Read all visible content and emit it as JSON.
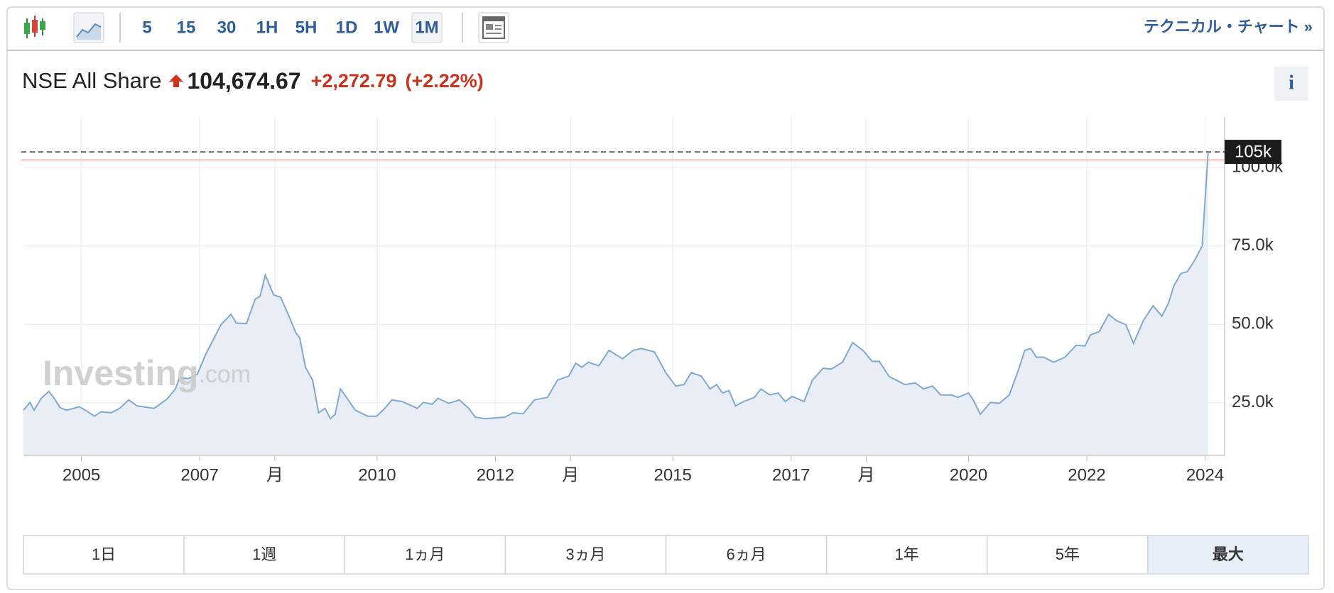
{
  "toolbar": {
    "intervals": [
      "5",
      "15",
      "30",
      "1H",
      "5H",
      "1D",
      "1W",
      "1M"
    ],
    "selected": 7,
    "technical_link": "テクニカル・チャート »"
  },
  "info": "i",
  "chart_data": {
    "type": "area",
    "title": "NSE All Share",
    "price": "104,674.67",
    "change": "+2,272.79",
    "change_pct": "(+2.22%)",
    "watermark": [
      "Investing",
      ".com"
    ],
    "color": "#7ea9d1",
    "fill": "#e9eef6",
    "x": [
      2004.02,
      2004.13,
      2004.2,
      2004.32,
      2004.45,
      2004.54,
      2004.64,
      2004.75,
      2004.96,
      2005.07,
      2005.22,
      2005.33,
      2005.5,
      2005.65,
      2005.8,
      2005.94,
      2006.23,
      2006.45,
      2006.59,
      2006.66,
      2006.81,
      2006.96,
      2007.1,
      2007.21,
      2007.36,
      2007.53,
      2007.62,
      2007.79,
      2007.94,
      2008.02,
      2008.11,
      2008.25,
      2008.37,
      2008.51,
      2008.63,
      2008.69,
      2008.79,
      2008.91,
      2009.01,
      2009.12,
      2009.21,
      2009.29,
      2009.38,
      2009.5,
      2009.63,
      2009.84,
      2009.99,
      2010.13,
      2010.25,
      2010.42,
      2010.68,
      2010.78,
      2010.93,
      2011.03,
      2011.21,
      2011.39,
      2011.55,
      2011.66,
      2011.83,
      2012.01,
      2012.16,
      2012.3,
      2012.47,
      2012.66,
      2012.88,
      2013.05,
      2013.24,
      2013.36,
      2013.46,
      2013.57,
      2013.75,
      2013.92,
      2014.15,
      2014.33,
      2014.47,
      2014.69,
      2014.88,
      2015.05,
      2015.19,
      2015.31,
      2015.48,
      2015.63,
      2015.74,
      2015.84,
      2015.95,
      2016.06,
      2016.2,
      2016.38,
      2016.49,
      2016.64,
      2016.78,
      2016.9,
      2017.02,
      2017.22,
      2017.36,
      2017.54,
      2017.68,
      2017.87,
      2018.04,
      2018.23,
      2018.37,
      2018.49,
      2018.66,
      2018.81,
      2018.92,
      2019.1,
      2019.24,
      2019.39,
      2019.53,
      2019.71,
      2019.82,
      2020.0,
      2020.08,
      2020.2,
      2020.37,
      2020.52,
      2020.69,
      2020.86,
      2020.95,
      2021.05,
      2021.15,
      2021.27,
      2021.44,
      2021.63,
      2021.82,
      2021.97,
      2022.06,
      2022.21,
      2022.37,
      2022.5,
      2022.66,
      2022.79,
      2022.95,
      2023.12,
      2023.27,
      2023.38,
      2023.47,
      2023.59,
      2023.7,
      2023.82,
      2023.95,
      2024.05
    ],
    "values": [
      22600,
      25100,
      22600,
      26400,
      28600,
      26400,
      23400,
      22600,
      23700,
      22600,
      20700,
      22100,
      21800,
      23200,
      25900,
      24000,
      23200,
      26200,
      29400,
      33000,
      32700,
      34100,
      40300,
      44400,
      49900,
      53200,
      50400,
      50200,
      58100,
      58900,
      65700,
      59400,
      58600,
      52600,
      47200,
      45800,
      36300,
      32200,
      21800,
      23200,
      19900,
      21300,
      29400,
      26200,
      22600,
      20700,
      20700,
      23200,
      25900,
      25400,
      23200,
      25100,
      24500,
      26400,
      24800,
      25900,
      23200,
      20400,
      19900,
      20200,
      20400,
      21800,
      21500,
      25900,
      26700,
      32200,
      33500,
      37600,
      36300,
      37900,
      36800,
      41700,
      39000,
      41700,
      42300,
      41200,
      34600,
      30300,
      30800,
      34600,
      33500,
      29400,
      30800,
      28100,
      28900,
      24000,
      25400,
      26700,
      29400,
      27500,
      28100,
      25400,
      27000,
      25400,
      32200,
      36000,
      35700,
      37900,
      44200,
      41400,
      38200,
      38200,
      33300,
      31900,
      30800,
      31300,
      29400,
      30300,
      27500,
      27500,
      26700,
      28100,
      25900,
      21300,
      25100,
      24800,
      27500,
      36300,
      41700,
      42300,
      39500,
      39500,
      37900,
      39500,
      43300,
      43100,
      46600,
      47700,
      53200,
      51200,
      49900,
      43900,
      51000,
      55900,
      52600,
      56700,
      62200,
      66200,
      66800,
      70300,
      75000,
      104674.67
    ],
    "xlim": [
      2004.02,
      2024.33
    ],
    "ylim": [
      8200,
      116100
    ],
    "xticks": [
      2005,
      2007,
      {
        "value": 2008.27,
        "label": "月"
      },
      2010,
      2012,
      {
        "value": 2013.27,
        "label": "月"
      },
      2015,
      2017,
      {
        "value": 2018.27,
        "label": "月"
      },
      2020,
      2022,
      2024
    ],
    "yticks": [
      {
        "value": 25000,
        "label": "25.0k"
      },
      {
        "value": 50000,
        "label": "50.0k"
      },
      {
        "value": 75000,
        "label": "75.0k"
      },
      {
        "value": 100000,
        "label": "100.0k"
      }
    ],
    "grid": true,
    "last_marker": {
      "value": 105000,
      "label": "105k"
    },
    "prev_close": 102401.88
  },
  "ranges": {
    "buttons": [
      "1日",
      "1週",
      "1ヵ月",
      "3ヵ月",
      "6ヵ月",
      "1年",
      "5年",
      "最大"
    ],
    "selected": 7
  }
}
